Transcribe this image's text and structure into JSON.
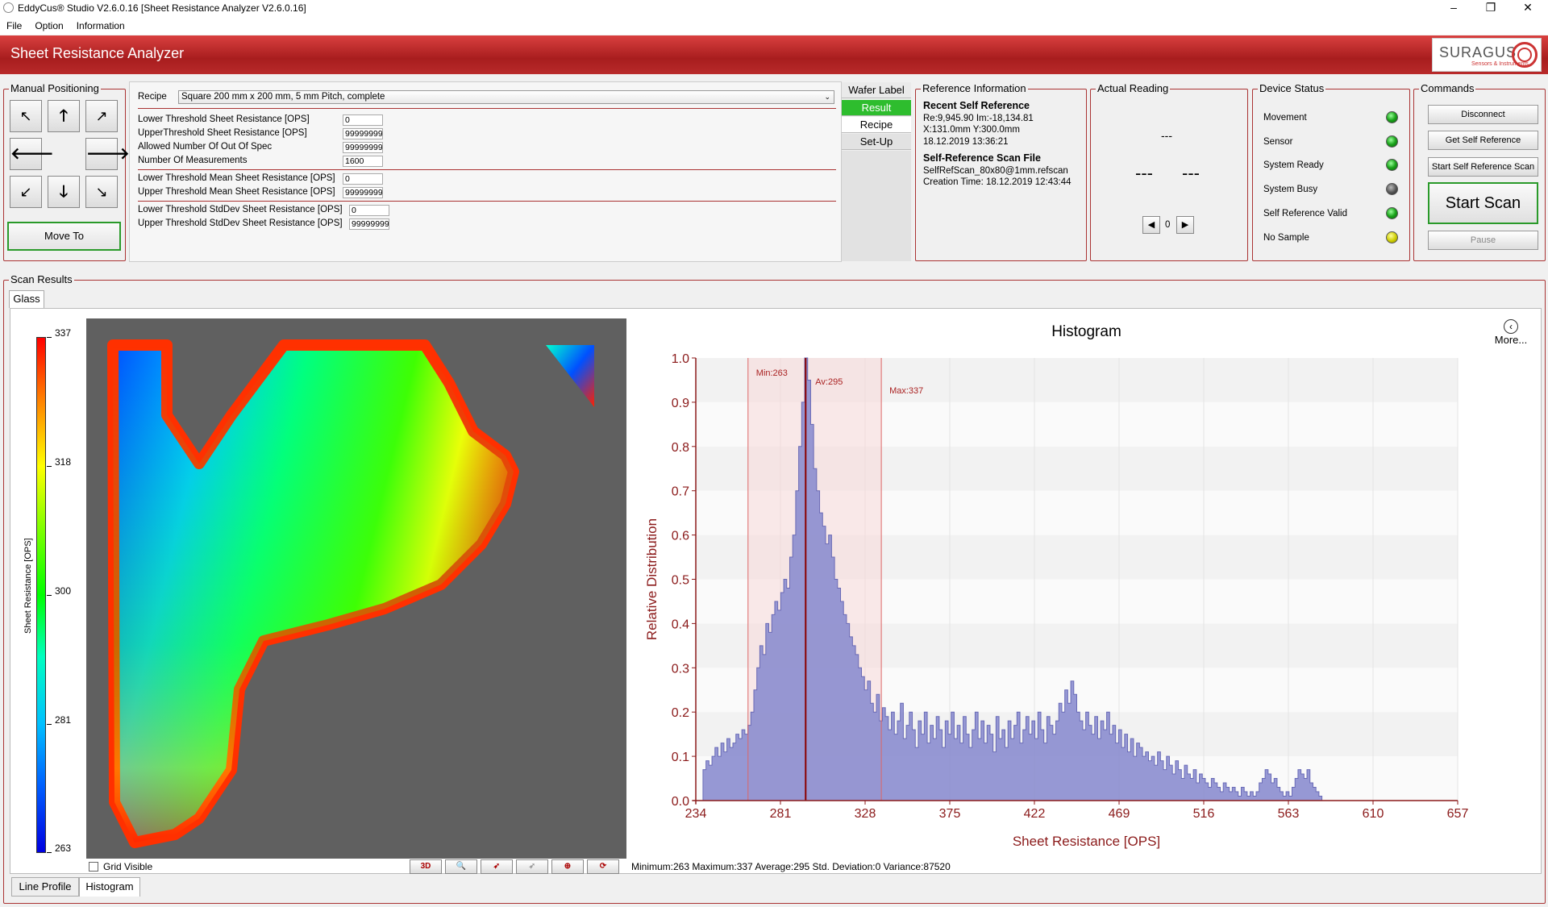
{
  "window": {
    "title": "EddyCus® Studio V2.6.0.16 [Sheet Resistance Analyzer V2.6.0.16]"
  },
  "menu": [
    "File",
    "Option",
    "Information"
  ],
  "header": {
    "title": "Sheet Resistance Analyzer",
    "logo_text": "SURAGUS",
    "logo_sub": "Sensors & Instruments"
  },
  "manual": {
    "label": "Manual Positioning",
    "move_to": "Move To"
  },
  "recipe": {
    "label": "Recipe",
    "selected": "Square 200 mm x 200 mm, 5 mm Pitch, complete",
    "fields": [
      {
        "label": "Lower Threshold Sheet Resistance [OPS]",
        "value": "0"
      },
      {
        "label": "UpperThreshold Sheet Resistance [OPS]",
        "value": "99999999"
      },
      {
        "label": "Allowed Number Of Out Of Spec",
        "value": "99999999"
      },
      {
        "label": "Number Of Measurements",
        "value": "1600"
      },
      {
        "label": "Lower Threshold Mean Sheet Resistance [OPS]",
        "value": "0"
      },
      {
        "label": "Upper Threshold Mean Sheet Resistance [OPS]",
        "value": "99999999"
      },
      {
        "label": "Lower Threshold StdDev Sheet Resistance [OPS]",
        "value": "0"
      },
      {
        "label": "Upper Threshold StdDev Sheet Resistance [OPS]",
        "value": "99999999"
      }
    ]
  },
  "side_tabs": {
    "header": "Wafer Label",
    "result": "Result",
    "recipe": "Recipe",
    "setup": "Set-Up"
  },
  "reference": {
    "label": "Reference Information",
    "recent_title": "Recent Self Reference",
    "re_im": "Re:9,945.90 Im:-18,134.81",
    "xy": "X:131.0mm Y:300.0mm",
    "date": "18.12.2019 13:36:21",
    "file_title": "Self-Reference Scan File",
    "file_name": "SelfRefScan_80x80@1mm.refscan",
    "creation": "Creation Time: 18.12.2019 12:43:44"
  },
  "actual": {
    "label": "Actual Reading",
    "top": "---",
    "left": "---",
    "right": "---",
    "counter": "0"
  },
  "device": {
    "label": "Device Status",
    "items": [
      {
        "name": "Movement",
        "state": "green"
      },
      {
        "name": "Sensor",
        "state": "green"
      },
      {
        "name": "System Ready",
        "state": "green"
      },
      {
        "name": "System Busy",
        "state": "gray"
      },
      {
        "name": "Self Reference Valid",
        "state": "green"
      },
      {
        "name": "No Sample",
        "state": "yellow"
      }
    ]
  },
  "commands": {
    "label": "Commands",
    "disconnect": "Disconnect",
    "get_ref": "Get Self Reference",
    "start_ref": "Start Self Reference Scan",
    "start_scan": "Start Scan",
    "pause": "Pause"
  },
  "scan": {
    "label": "Scan Results",
    "tab": "Glass",
    "colorbar_title": "Sheet Resistance [OPS]",
    "colorbar_ticks": [
      "337",
      "318",
      "300",
      "281",
      "263"
    ],
    "grid_label": "Grid Visible",
    "toolbar_3d": "3D",
    "more": "More...",
    "stats": "Minimum:263   Maximum:337   Average:295   Std. Deviation:0  Variance:87520",
    "bottom_tabs": [
      "Line Profile",
      "Histogram"
    ]
  },
  "chart_data": {
    "type": "bar",
    "title": "Histogram",
    "xlabel": "Sheet Resistance [OPS]",
    "ylabel": "Relative Distribution",
    "xlim": [
      234,
      657
    ],
    "ylim": [
      0,
      1.0
    ],
    "xticks": [
      234,
      281,
      328,
      375,
      422,
      469,
      516,
      563,
      610,
      657
    ],
    "yticks": [
      0.0,
      0.1,
      0.2,
      0.3,
      0.4,
      0.5,
      0.6,
      0.7,
      0.8,
      0.9,
      1.0
    ],
    "markers": [
      {
        "label": "Min:263",
        "value": 263
      },
      {
        "label": "Av:295",
        "value": 295
      },
      {
        "label": "Max:337",
        "value": 337
      }
    ],
    "bin_start": 238,
    "bin_width": 1.66,
    "values": [
      0.07,
      0.09,
      0.08,
      0.1,
      0.12,
      0.1,
      0.13,
      0.11,
      0.14,
      0.12,
      0.13,
      0.15,
      0.14,
      0.16,
      0.15,
      0.17,
      0.2,
      0.25,
      0.3,
      0.35,
      0.33,
      0.4,
      0.38,
      0.42,
      0.45,
      0.43,
      0.47,
      0.5,
      0.48,
      0.55,
      0.6,
      0.7,
      0.8,
      0.9,
      1.0,
      0.95,
      0.85,
      0.75,
      0.7,
      0.65,
      0.62,
      0.58,
      0.6,
      0.55,
      0.5,
      0.48,
      0.45,
      0.42,
      0.4,
      0.37,
      0.35,
      0.33,
      0.3,
      0.28,
      0.25,
      0.27,
      0.22,
      0.2,
      0.24,
      0.18,
      0.21,
      0.19,
      0.16,
      0.2,
      0.15,
      0.18,
      0.22,
      0.14,
      0.17,
      0.2,
      0.16,
      0.12,
      0.18,
      0.15,
      0.2,
      0.13,
      0.17,
      0.14,
      0.19,
      0.16,
      0.12,
      0.18,
      0.15,
      0.2,
      0.14,
      0.17,
      0.13,
      0.19,
      0.15,
      0.12,
      0.16,
      0.2,
      0.14,
      0.18,
      0.13,
      0.17,
      0.15,
      0.11,
      0.19,
      0.14,
      0.16,
      0.12,
      0.18,
      0.14,
      0.17,
      0.2,
      0.13,
      0.16,
      0.19,
      0.15,
      0.18,
      0.14,
      0.2,
      0.16,
      0.13,
      0.19,
      0.17,
      0.15,
      0.18,
      0.22,
      0.2,
      0.25,
      0.22,
      0.27,
      0.24,
      0.2,
      0.18,
      0.16,
      0.2,
      0.17,
      0.15,
      0.19,
      0.14,
      0.18,
      0.16,
      0.2,
      0.15,
      0.17,
      0.13,
      0.16,
      0.12,
      0.15,
      0.11,
      0.14,
      0.1,
      0.13,
      0.12,
      0.1,
      0.11,
      0.09,
      0.1,
      0.08,
      0.11,
      0.09,
      0.07,
      0.1,
      0.08,
      0.06,
      0.09,
      0.07,
      0.05,
      0.08,
      0.06,
      0.05,
      0.07,
      0.04,
      0.06,
      0.05,
      0.04,
      0.03,
      0.05,
      0.04,
      0.03,
      0.02,
      0.04,
      0.03,
      0.02,
      0.03,
      0.02,
      0.01,
      0.03,
      0.02,
      0.01,
      0.02,
      0.01,
      0.02,
      0.04,
      0.05,
      0.07,
      0.06,
      0.04,
      0.05,
      0.03,
      0.02,
      0.01,
      0.02,
      0.01,
      0.03,
      0.05,
      0.07,
      0.06,
      0.05,
      0.07,
      0.04,
      0.03,
      0.02,
      0.01
    ]
  }
}
